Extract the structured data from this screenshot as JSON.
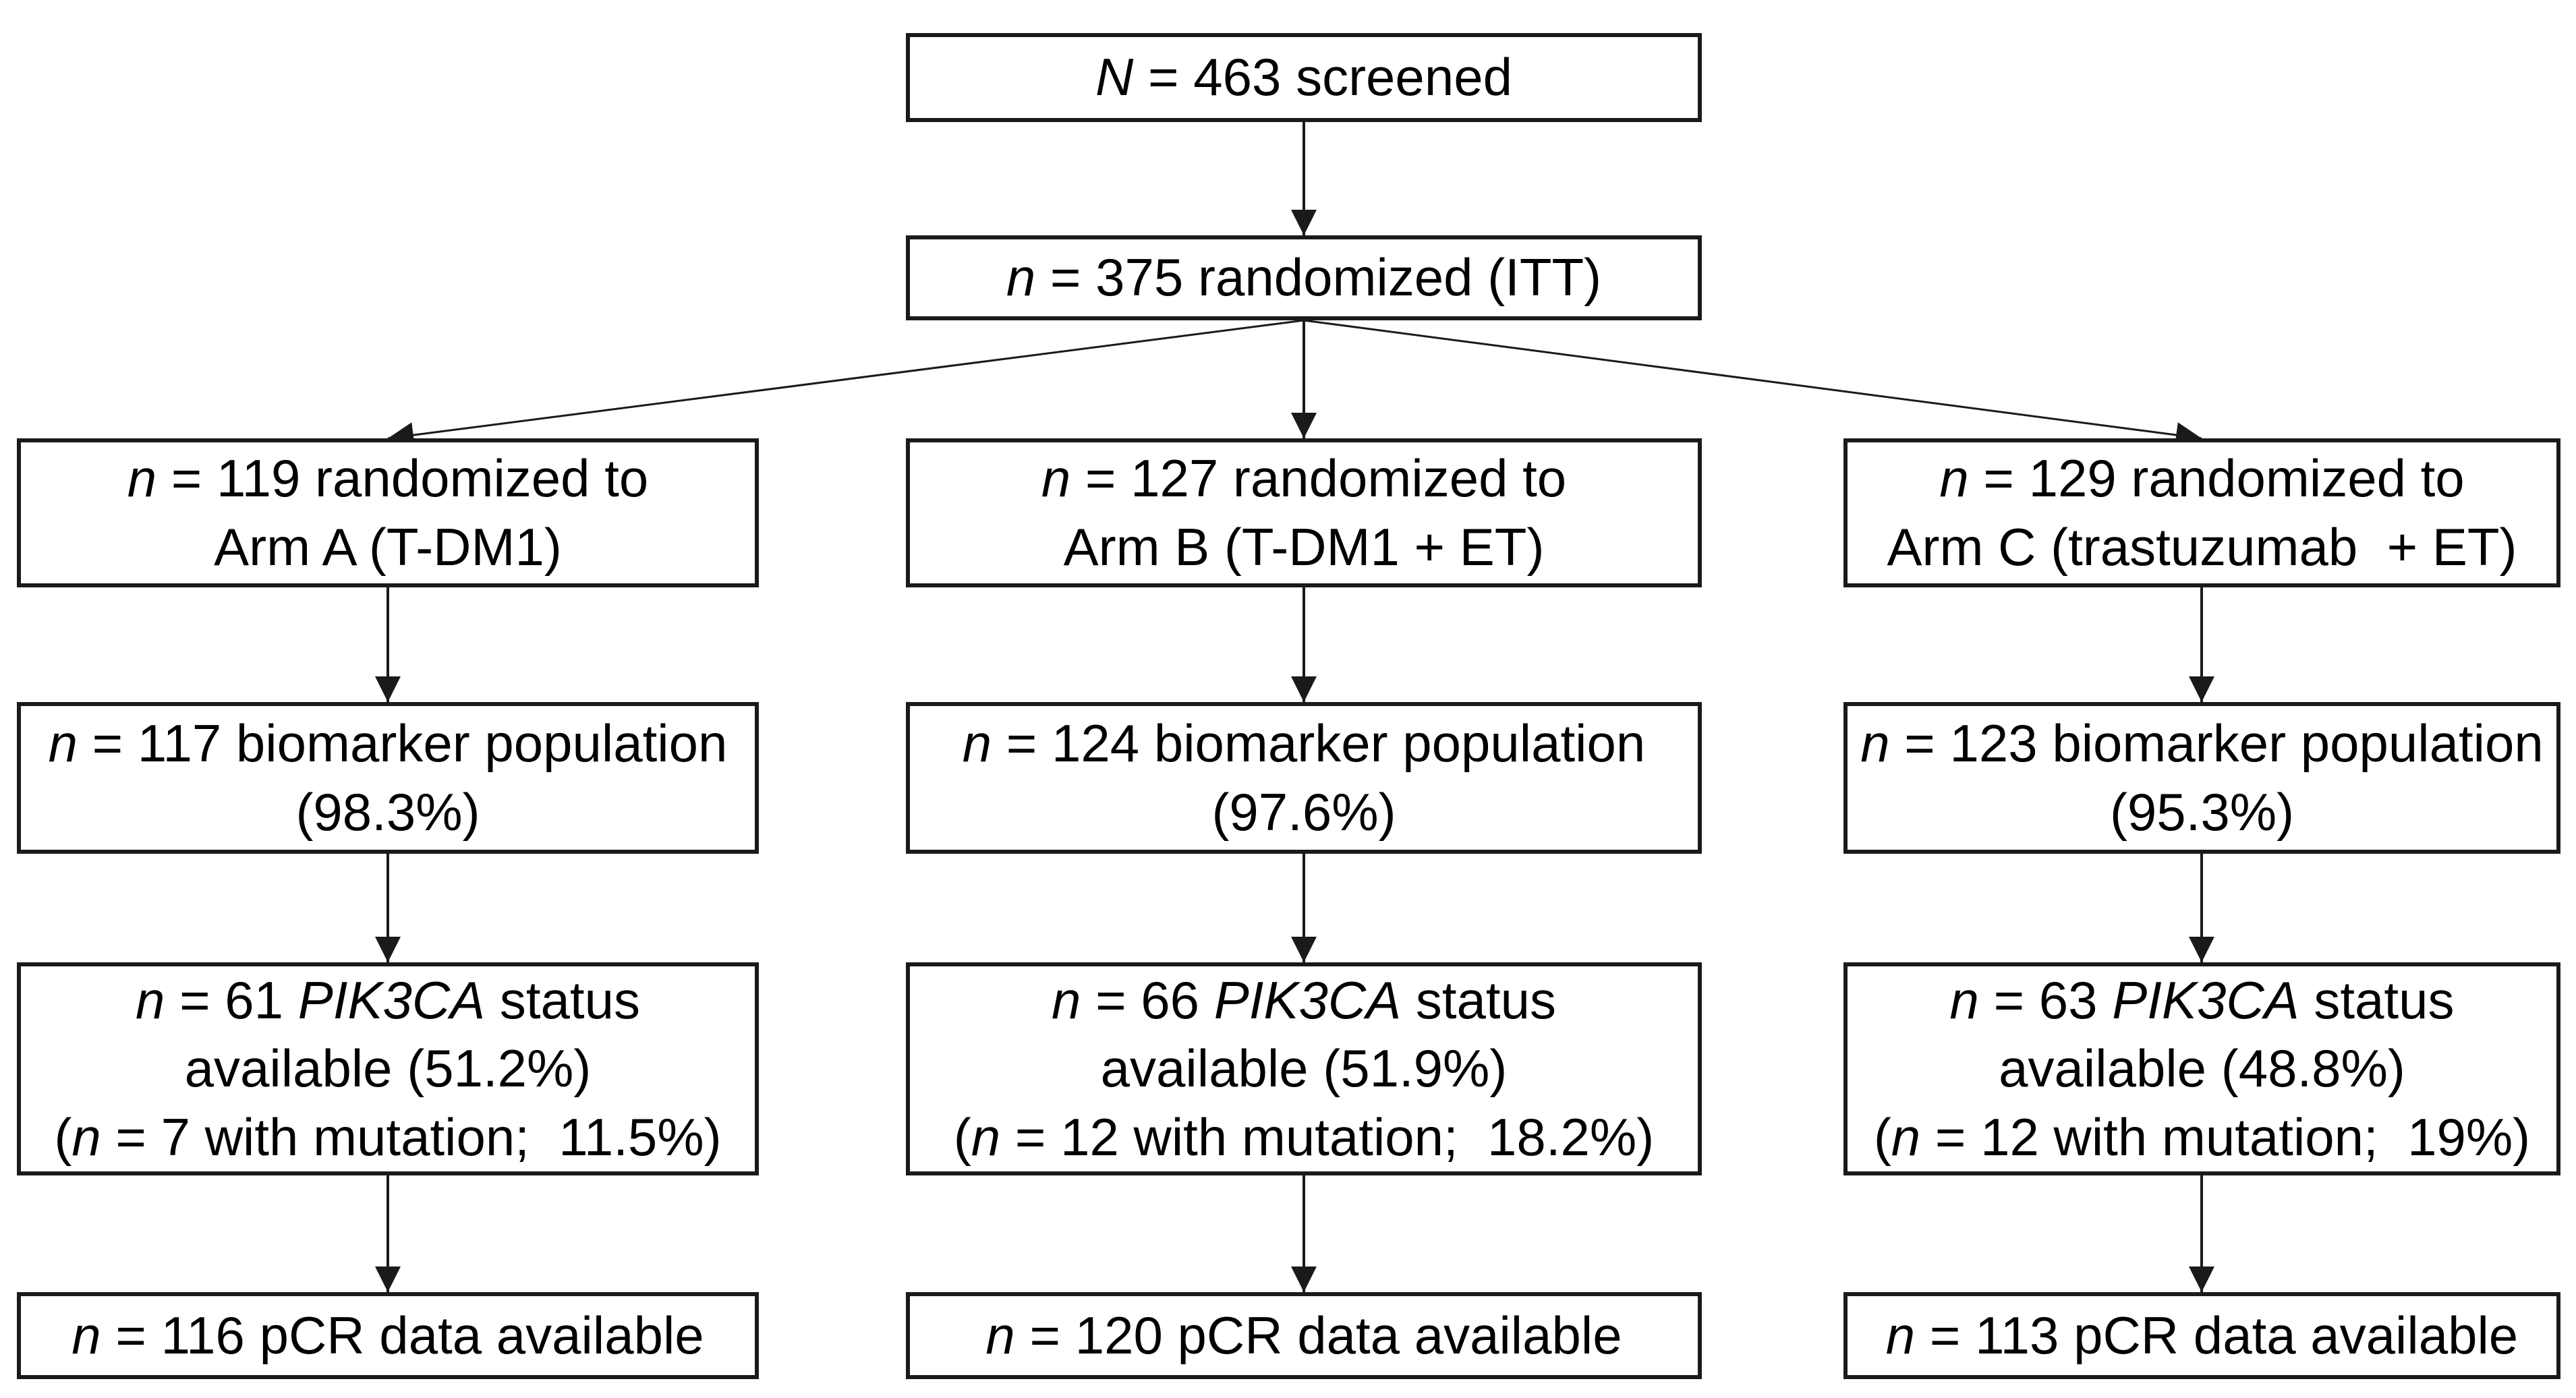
{
  "colors": {
    "border": "#1a1a1a",
    "text": "#000000",
    "background": "#ffffff",
    "arrow": "#1a1a1a"
  },
  "flow": {
    "screened": {
      "lines": [
        [
          {
            "t": "N",
            "i": true
          },
          {
            "t": " = 463 screened"
          }
        ]
      ]
    },
    "randomized": {
      "lines": [
        [
          {
            "t": "n",
            "i": true
          },
          {
            "t": " = 375 randomized (ITT)"
          }
        ]
      ]
    },
    "arm_a": {
      "lines": [
        [
          {
            "t": "n",
            "i": true
          },
          {
            "t": " = 119 randomized to"
          }
        ],
        [
          {
            "t": "Arm A (T-DM1)"
          }
        ]
      ]
    },
    "arm_b": {
      "lines": [
        [
          {
            "t": "n",
            "i": true
          },
          {
            "t": " = 127 randomized to"
          }
        ],
        [
          {
            "t": "Arm B (T-DM1 + ET)"
          }
        ]
      ]
    },
    "arm_c": {
      "lines": [
        [
          {
            "t": "n",
            "i": true
          },
          {
            "t": " = 129 randomized to"
          }
        ],
        [
          {
            "t": "Arm C (trastuzumab  + ET)"
          }
        ]
      ]
    },
    "biomarker_a": {
      "lines": [
        [
          {
            "t": "n",
            "i": true
          },
          {
            "t": " = 117 biomarker population"
          }
        ],
        [
          {
            "t": "(98.3%)"
          }
        ]
      ]
    },
    "biomarker_b": {
      "lines": [
        [
          {
            "t": "n",
            "i": true
          },
          {
            "t": " = 124 biomarker population"
          }
        ],
        [
          {
            "t": "(97.6%)"
          }
        ]
      ]
    },
    "biomarker_c": {
      "lines": [
        [
          {
            "t": "n",
            "i": true
          },
          {
            "t": " = 123 biomarker population"
          }
        ],
        [
          {
            "t": "(95.3%)"
          }
        ]
      ]
    },
    "pik3ca_a": {
      "lines": [
        [
          {
            "t": "n",
            "i": true
          },
          {
            "t": " = 61 "
          },
          {
            "t": "PIK3CA",
            "i": true
          },
          {
            "t": " status"
          }
        ],
        [
          {
            "t": "available (51.2%)"
          }
        ],
        [
          {
            "t": "("
          },
          {
            "t": "n",
            "i": true
          },
          {
            "t": " = 7 with mutation;  11.5%)"
          }
        ]
      ]
    },
    "pik3ca_b": {
      "lines": [
        [
          {
            "t": "n",
            "i": true
          },
          {
            "t": " = 66 "
          },
          {
            "t": "PIK3CA",
            "i": true
          },
          {
            "t": " status"
          }
        ],
        [
          {
            "t": "available (51.9%)"
          }
        ],
        [
          {
            "t": "("
          },
          {
            "t": "n",
            "i": true
          },
          {
            "t": " = 12 with mutation;  18.2%)"
          }
        ]
      ]
    },
    "pik3ca_c": {
      "lines": [
        [
          {
            "t": "n",
            "i": true
          },
          {
            "t": " = 63 "
          },
          {
            "t": "PIK3CA",
            "i": true
          },
          {
            "t": " status"
          }
        ],
        [
          {
            "t": "available (48.8%)"
          }
        ],
        [
          {
            "t": "("
          },
          {
            "t": "n",
            "i": true
          },
          {
            "t": " = 12 with mutation;  19%)"
          }
        ]
      ]
    },
    "pcr_a": {
      "lines": [
        [
          {
            "t": "n",
            "i": true
          },
          {
            "t": " = 116 pCR data available"
          }
        ]
      ]
    },
    "pcr_b": {
      "lines": [
        [
          {
            "t": "n",
            "i": true
          },
          {
            "t": " = 120 pCR data available"
          }
        ]
      ]
    },
    "pcr_c": {
      "lines": [
        [
          {
            "t": "n",
            "i": true
          },
          {
            "t": " = 113 pCR data available"
          }
        ]
      ]
    },
    "connections": [
      {
        "from": "screened",
        "to": "randomized"
      },
      {
        "from": "randomized",
        "to": "arm_a"
      },
      {
        "from": "randomized",
        "to": "arm_b"
      },
      {
        "from": "randomized",
        "to": "arm_c"
      },
      {
        "from": "arm_a",
        "to": "biomarker_a"
      },
      {
        "from": "arm_b",
        "to": "biomarker_b"
      },
      {
        "from": "arm_c",
        "to": "biomarker_c"
      },
      {
        "from": "biomarker_a",
        "to": "pik3ca_a"
      },
      {
        "from": "biomarker_b",
        "to": "pik3ca_b"
      },
      {
        "from": "biomarker_c",
        "to": "pik3ca_c"
      },
      {
        "from": "pik3ca_a",
        "to": "pcr_a"
      },
      {
        "from": "pik3ca_b",
        "to": "pcr_b"
      },
      {
        "from": "pik3ca_c",
        "to": "pcr_c"
      }
    ]
  }
}
